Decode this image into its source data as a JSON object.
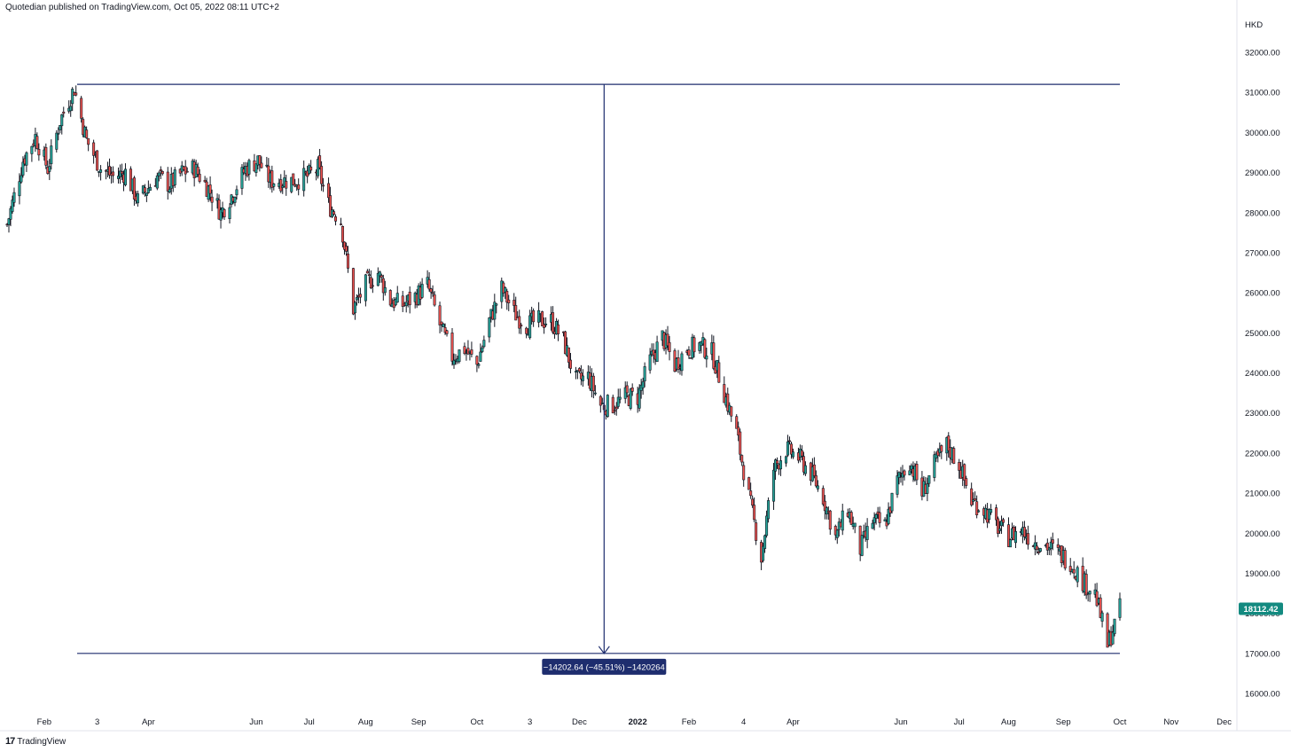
{
  "header": {
    "publish_text": "Quotedian published on TradingView.com, Oct 05, 2022 08:11 UTC+2"
  },
  "footer": {
    "logo_glyph": "17",
    "brand": "TradingView"
  },
  "colors": {
    "up": "#26a69a",
    "down": "#ef5350",
    "wick": "#131722",
    "measure": "#1e2d6e",
    "price_label_bg": "#138a80",
    "axis_line": "#e0e3eb"
  },
  "chart_data": {
    "type": "candlestick",
    "currency": "HKD",
    "ylim": [
      15500,
      32600
    ],
    "y_ticks": [
      {
        "v": 32000,
        "label": "32000.00"
      },
      {
        "v": 31000,
        "label": "31000.00"
      },
      {
        "v": 30000,
        "label": "30000.00"
      },
      {
        "v": 29000,
        "label": "29000.00"
      },
      {
        "v": 28000,
        "label": "28000.00"
      },
      {
        "v": 27000,
        "label": "27000.00"
      },
      {
        "v": 26000,
        "label": "26000.00"
      },
      {
        "v": 25000,
        "label": "25000.00"
      },
      {
        "v": 24000,
        "label": "24000.00"
      },
      {
        "v": 23000,
        "label": "23000.00"
      },
      {
        "v": 22000,
        "label": "22000.00"
      },
      {
        "v": 21000,
        "label": "21000.00"
      },
      {
        "v": 20000,
        "label": "20000.00"
      },
      {
        "v": 19000,
        "label": "19000.00"
      },
      {
        "v": 18000,
        "label": "18000.00"
      },
      {
        "v": 17000,
        "label": "17000.00"
      },
      {
        "v": 16000,
        "label": "16000.00"
      }
    ],
    "x_ticks": [
      {
        "date": "2021-02-01",
        "label": "Feb"
      },
      {
        "date": "2021-03-03",
        "label": "3"
      },
      {
        "date": "2021-04-01",
        "label": "Apr"
      },
      {
        "date": "2021-06-01",
        "label": "Jun"
      },
      {
        "date": "2021-07-01",
        "label": "Jul"
      },
      {
        "date": "2021-08-02",
        "label": "Aug"
      },
      {
        "date": "2021-09-01",
        "label": "Sep"
      },
      {
        "date": "2021-10-04",
        "label": "Oct"
      },
      {
        "date": "2021-11-03",
        "label": "3"
      },
      {
        "date": "2021-12-01",
        "label": "Dec"
      },
      {
        "date": "2022-01-03",
        "label": "2022",
        "bold": true
      },
      {
        "date": "2022-02-01",
        "label": "Feb"
      },
      {
        "date": "2022-03-04",
        "label": "4"
      },
      {
        "date": "2022-04-01",
        "label": "Apr"
      },
      {
        "date": "2022-06-01",
        "label": "Jun"
      },
      {
        "date": "2022-07-04",
        "label": "Jul"
      },
      {
        "date": "2022-08-01",
        "label": "Aug"
      },
      {
        "date": "2022-09-01",
        "label": "Sep"
      },
      {
        "date": "2022-10-03",
        "label": "Oct"
      },
      {
        "date": "2022-11-01",
        "label": "Nov"
      },
      {
        "date": "2022-12-01",
        "label": "Dec"
      }
    ],
    "close_path": [
      [
        "2021-01-11",
        27700
      ],
      [
        "2021-01-20",
        29300
      ],
      [
        "2021-01-27",
        29900
      ],
      [
        "2021-02-03",
        29100
      ],
      [
        "2021-02-10",
        30300
      ],
      [
        "2021-02-18",
        31100
      ],
      [
        "2021-02-25",
        29800
      ],
      [
        "2021-03-05",
        29100
      ],
      [
        "2021-03-12",
        28900
      ],
      [
        "2021-03-19",
        29000
      ],
      [
        "2021-03-26",
        28300
      ],
      [
        "2021-04-06",
        28900
      ],
      [
        "2021-04-13",
        28700
      ],
      [
        "2021-04-20",
        29000
      ],
      [
        "2021-04-27",
        29100
      ],
      [
        "2021-05-05",
        28600
      ],
      [
        "2021-05-12",
        28000
      ],
      [
        "2021-05-19",
        28500
      ],
      [
        "2021-05-26",
        29100
      ],
      [
        "2021-06-02",
        29300
      ],
      [
        "2021-06-09",
        28800
      ],
      [
        "2021-06-16",
        28800
      ],
      [
        "2021-06-23",
        28800
      ],
      [
        "2021-06-30",
        28900
      ],
      [
        "2021-07-06",
        29100
      ],
      [
        "2021-07-12",
        28200
      ],
      [
        "2021-07-19",
        27800
      ],
      [
        "2021-07-26",
        25600
      ],
      [
        "2021-08-02",
        26200
      ],
      [
        "2021-08-09",
        26500
      ],
      [
        "2021-08-16",
        25800
      ],
      [
        "2021-08-23",
        25700
      ],
      [
        "2021-08-30",
        25900
      ],
      [
        "2021-09-06",
        26200
      ],
      [
        "2021-09-13",
        25200
      ],
      [
        "2021-09-20",
        24400
      ],
      [
        "2021-09-27",
        24600
      ],
      [
        "2021-10-04",
        24200
      ],
      [
        "2021-10-11",
        25300
      ],
      [
        "2021-10-18",
        26100
      ],
      [
        "2021-10-25",
        25500
      ],
      [
        "2021-11-01",
        25200
      ],
      [
        "2021-11-08",
        25300
      ],
      [
        "2021-11-15",
        25300
      ],
      [
        "2021-11-22",
        24800
      ],
      [
        "2021-11-29",
        23800
      ],
      [
        "2021-12-06",
        23900
      ],
      [
        "2021-12-13",
        23200
      ],
      [
        "2021-12-20",
        23200
      ],
      [
        "2021-12-27",
        23400
      ],
      [
        "2022-01-03",
        23400
      ],
      [
        "2022-01-10",
        24300
      ],
      [
        "2022-01-17",
        24900
      ],
      [
        "2022-01-24",
        24200
      ],
      [
        "2022-01-31",
        24600
      ],
      [
        "2022-02-07",
        24700
      ],
      [
        "2022-02-14",
        24500
      ],
      [
        "2022-02-21",
        23500
      ],
      [
        "2022-02-28",
        22500
      ],
      [
        "2022-03-07",
        20900
      ],
      [
        "2022-03-14",
        19400
      ],
      [
        "2022-03-21",
        21600
      ],
      [
        "2022-03-28",
        22100
      ],
      [
        "2022-04-04",
        21900
      ],
      [
        "2022-04-11",
        21500
      ],
      [
        "2022-04-18",
        20900
      ],
      [
        "2022-04-25",
        19900
      ],
      [
        "2022-05-02",
        20600
      ],
      [
        "2022-05-09",
        19600
      ],
      [
        "2022-05-16",
        20300
      ],
      [
        "2022-05-23",
        20200
      ],
      [
        "2022-05-30",
        21300
      ],
      [
        "2022-06-06",
        21800
      ],
      [
        "2022-06-13",
        21000
      ],
      [
        "2022-06-20",
        21700
      ],
      [
        "2022-06-27",
        22200
      ],
      [
        "2022-07-04",
        21700
      ],
      [
        "2022-07-11",
        20800
      ],
      [
        "2022-07-18",
        20600
      ],
      [
        "2022-07-25",
        20200
      ],
      [
        "2022-08-01",
        19900
      ],
      [
        "2022-08-08",
        20100
      ],
      [
        "2022-08-15",
        19800
      ],
      [
        "2022-08-22",
        19700
      ],
      [
        "2022-08-29",
        19500
      ],
      [
        "2022-09-05",
        19300
      ],
      [
        "2022-09-12",
        18800
      ],
      [
        "2022-09-19",
        18500
      ],
      [
        "2022-09-26",
        17200
      ],
      [
        "2022-10-03",
        18112
      ]
    ],
    "last_price": {
      "value": 18112.42,
      "label": "18112.42"
    },
    "measure": {
      "from_date": "2021-02-18",
      "to_date": "2022-10-03",
      "high": 31200,
      "low": 17000,
      "arrow_date": "2021-12-15",
      "label": "−14202.64 (−45.51%) −1420264"
    }
  }
}
